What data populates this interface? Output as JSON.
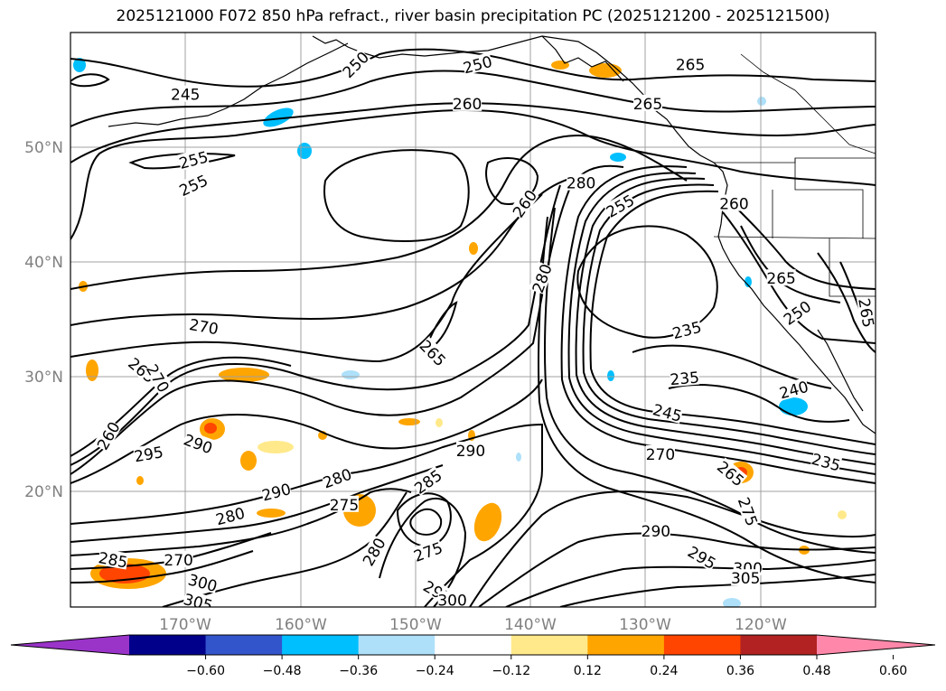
{
  "title": "2025121000 F072 850 hPa refract., river basin precipitation PC (2025121200 - 2025121500)",
  "map": {
    "lon_range": [
      -180,
      -110
    ],
    "lat_range": [
      10,
      60
    ],
    "lat_ticks": [
      "20°N",
      "30°N",
      "40°N",
      "50°N"
    ],
    "lon_ticks": [
      "170°W",
      "160°W",
      "150°W",
      "140°W",
      "130°W",
      "120°W"
    ],
    "grid": true
  },
  "contour_labels": [
    {
      "text": "245",
      "lon": -170,
      "lat": 54.6,
      "rot": 0
    },
    {
      "text": "250",
      "lon": -155.2,
      "lat": 57.2,
      "rot": -45
    },
    {
      "text": "250",
      "lon": -144.6,
      "lat": 57.2,
      "rot": -15
    },
    {
      "text": "265",
      "lon": -126.1,
      "lat": 57.2,
      "rot": 0
    },
    {
      "text": "260",
      "lon": -145.5,
      "lat": 53.8,
      "rot": 0
    },
    {
      "text": "265",
      "lon": -129.8,
      "lat": 53.8,
      "rot": 0
    },
    {
      "text": "255",
      "lon": -169.3,
      "lat": 48.9,
      "rot": -15
    },
    {
      "text": "255",
      "lon": -169.3,
      "lat": 46.7,
      "rot": -25
    },
    {
      "text": "260",
      "lon": -140.5,
      "lat": 45.1,
      "rot": -55
    },
    {
      "text": "280",
      "lon": -135.6,
      "lat": 46.9,
      "rot": 0
    },
    {
      "text": "280",
      "lon": -139.0,
      "lat": 38.6,
      "rot": -70
    },
    {
      "text": "255",
      "lon": -132.2,
      "lat": 44.9,
      "rot": -30
    },
    {
      "text": "260",
      "lon": -122.3,
      "lat": 45.1,
      "rot": 0
    },
    {
      "text": "265",
      "lon": -118.2,
      "lat": 38.6,
      "rot": 0
    },
    {
      "text": "250",
      "lon": -116.8,
      "lat": 35.6,
      "rot": -35
    },
    {
      "text": "265",
      "lon": -110.8,
      "lat": 35.6,
      "rot": 80
    },
    {
      "text": "270",
      "lon": -168.4,
      "lat": 34.4,
      "rot": 10
    },
    {
      "text": "265",
      "lon": -148.5,
      "lat": 32.1,
      "rot": 45
    },
    {
      "text": "235",
      "lon": -126.4,
      "lat": 34.1,
      "rot": -15
    },
    {
      "text": "235",
      "lon": -126.6,
      "lat": 29.9,
      "rot": -5
    },
    {
      "text": "240",
      "lon": -117.1,
      "lat": 28.9,
      "rot": -15
    },
    {
      "text": "265",
      "lon": -173.8,
      "lat": 30.6,
      "rot": 40
    },
    {
      "text": "270",
      "lon": -172.4,
      "lat": 29.9,
      "rot": 60
    },
    {
      "text": "245",
      "lon": -128.1,
      "lat": 26.9,
      "rot": 15
    },
    {
      "text": "260",
      "lon": -176.7,
      "lat": 24.9,
      "rot": -60
    },
    {
      "text": "290",
      "lon": -168.9,
      "lat": 24.2,
      "rot": 20
    },
    {
      "text": "295",
      "lon": -173.2,
      "lat": 23.3,
      "rot": -10
    },
    {
      "text": "290",
      "lon": -145.2,
      "lat": 23.6,
      "rot": 0
    },
    {
      "text": "270",
      "lon": -128.7,
      "lat": 23.3,
      "rot": 0
    },
    {
      "text": "265",
      "lon": -122.6,
      "lat": 21.6,
      "rot": 40
    },
    {
      "text": "235",
      "lon": -114.3,
      "lat": 22.6,
      "rot": 15
    },
    {
      "text": "280",
      "lon": -156.8,
      "lat": 21.2,
      "rot": -20
    },
    {
      "text": "290",
      "lon": -162.1,
      "lat": 20.0,
      "rot": -15
    },
    {
      "text": "285",
      "lon": -148.9,
      "lat": 20.9,
      "rot": -35
    },
    {
      "text": "275",
      "lon": -156.2,
      "lat": 18.9,
      "rot": 0
    },
    {
      "text": "280",
      "lon": -166.1,
      "lat": 17.9,
      "rot": -15
    },
    {
      "text": "275",
      "lon": -121.1,
      "lat": 18.3,
      "rot": 70
    },
    {
      "text": "290",
      "lon": -129.1,
      "lat": 16.6,
      "rot": 0
    },
    {
      "text": "280",
      "lon": -153.6,
      "lat": 14.8,
      "rot": -60
    },
    {
      "text": "275",
      "lon": -148.9,
      "lat": 14.8,
      "rot": -20
    },
    {
      "text": "285",
      "lon": -176.3,
      "lat": 14.1,
      "rot": 10
    },
    {
      "text": "270",
      "lon": -170.6,
      "lat": 14.1,
      "rot": 0
    },
    {
      "text": "295",
      "lon": -125.1,
      "lat": 14.3,
      "rot": 30
    },
    {
      "text": "300",
      "lon": -121.1,
      "lat": 13.4,
      "rot": 0
    },
    {
      "text": "305",
      "lon": -121.3,
      "lat": 12.5,
      "rot": 0
    },
    {
      "text": "300",
      "lon": -168.5,
      "lat": 12.1,
      "rot": 15
    },
    {
      "text": "295",
      "lon": -148.1,
      "lat": 11.3,
      "rot": 30
    },
    {
      "text": "305",
      "lon": -168.9,
      "lat": 10.4,
      "rot": 15
    },
    {
      "text": "300",
      "lon": -146.8,
      "lat": 10.6,
      "rot": 0
    }
  ],
  "colorbar": {
    "ticks": [
      "−0.60",
      "−0.48",
      "−0.36",
      "−0.24",
      "−0.12",
      "0.12",
      "0.24",
      "0.36",
      "0.48",
      "0.60"
    ],
    "colors": [
      "#9a34c9",
      "#00008b",
      "#3355cc",
      "#00bfff",
      "#aee0fa",
      "#ffffff",
      "#ffe98a",
      "#ffa500",
      "#ff4500",
      "#b22222",
      "#ff88aa"
    ]
  }
}
